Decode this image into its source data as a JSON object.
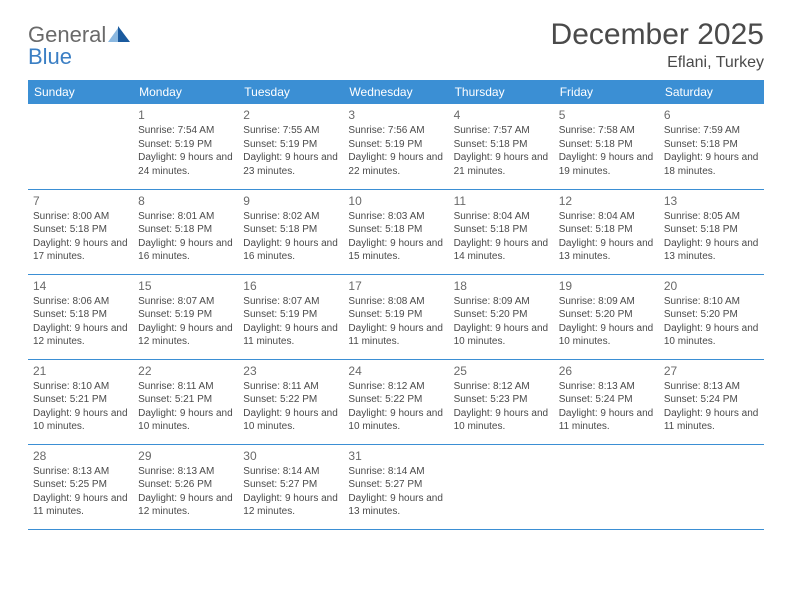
{
  "brand": {
    "part1": "General",
    "part2": "Blue"
  },
  "title": "December 2025",
  "location": "Eflani, Turkey",
  "colors": {
    "header_bg": "#3b8fd4",
    "header_text": "#ffffff",
    "border": "#3b8fd4",
    "body_text": "#4a4a4a",
    "brand_grey": "#6a6a6a",
    "brand_blue": "#3b7fc4",
    "logo_light": "#8bb8e0",
    "logo_dark": "#1a5a9e"
  },
  "weekdays": [
    "Sunday",
    "Monday",
    "Tuesday",
    "Wednesday",
    "Thursday",
    "Friday",
    "Saturday"
  ],
  "start_offset": 1,
  "days": [
    {
      "n": 1,
      "sr": "7:54 AM",
      "ss": "5:19 PM",
      "dl": "9 hours and 24 minutes."
    },
    {
      "n": 2,
      "sr": "7:55 AM",
      "ss": "5:19 PM",
      "dl": "9 hours and 23 minutes."
    },
    {
      "n": 3,
      "sr": "7:56 AM",
      "ss": "5:19 PM",
      "dl": "9 hours and 22 minutes."
    },
    {
      "n": 4,
      "sr": "7:57 AM",
      "ss": "5:18 PM",
      "dl": "9 hours and 21 minutes."
    },
    {
      "n": 5,
      "sr": "7:58 AM",
      "ss": "5:18 PM",
      "dl": "9 hours and 19 minutes."
    },
    {
      "n": 6,
      "sr": "7:59 AM",
      "ss": "5:18 PM",
      "dl": "9 hours and 18 minutes."
    },
    {
      "n": 7,
      "sr": "8:00 AM",
      "ss": "5:18 PM",
      "dl": "9 hours and 17 minutes."
    },
    {
      "n": 8,
      "sr": "8:01 AM",
      "ss": "5:18 PM",
      "dl": "9 hours and 16 minutes."
    },
    {
      "n": 9,
      "sr": "8:02 AM",
      "ss": "5:18 PM",
      "dl": "9 hours and 16 minutes."
    },
    {
      "n": 10,
      "sr": "8:03 AM",
      "ss": "5:18 PM",
      "dl": "9 hours and 15 minutes."
    },
    {
      "n": 11,
      "sr": "8:04 AM",
      "ss": "5:18 PM",
      "dl": "9 hours and 14 minutes."
    },
    {
      "n": 12,
      "sr": "8:04 AM",
      "ss": "5:18 PM",
      "dl": "9 hours and 13 minutes."
    },
    {
      "n": 13,
      "sr": "8:05 AM",
      "ss": "5:18 PM",
      "dl": "9 hours and 13 minutes."
    },
    {
      "n": 14,
      "sr": "8:06 AM",
      "ss": "5:18 PM",
      "dl": "9 hours and 12 minutes."
    },
    {
      "n": 15,
      "sr": "8:07 AM",
      "ss": "5:19 PM",
      "dl": "9 hours and 12 minutes."
    },
    {
      "n": 16,
      "sr": "8:07 AM",
      "ss": "5:19 PM",
      "dl": "9 hours and 11 minutes."
    },
    {
      "n": 17,
      "sr": "8:08 AM",
      "ss": "5:19 PM",
      "dl": "9 hours and 11 minutes."
    },
    {
      "n": 18,
      "sr": "8:09 AM",
      "ss": "5:20 PM",
      "dl": "9 hours and 10 minutes."
    },
    {
      "n": 19,
      "sr": "8:09 AM",
      "ss": "5:20 PM",
      "dl": "9 hours and 10 minutes."
    },
    {
      "n": 20,
      "sr": "8:10 AM",
      "ss": "5:20 PM",
      "dl": "9 hours and 10 minutes."
    },
    {
      "n": 21,
      "sr": "8:10 AM",
      "ss": "5:21 PM",
      "dl": "9 hours and 10 minutes."
    },
    {
      "n": 22,
      "sr": "8:11 AM",
      "ss": "5:21 PM",
      "dl": "9 hours and 10 minutes."
    },
    {
      "n": 23,
      "sr": "8:11 AM",
      "ss": "5:22 PM",
      "dl": "9 hours and 10 minutes."
    },
    {
      "n": 24,
      "sr": "8:12 AM",
      "ss": "5:22 PM",
      "dl": "9 hours and 10 minutes."
    },
    {
      "n": 25,
      "sr": "8:12 AM",
      "ss": "5:23 PM",
      "dl": "9 hours and 10 minutes."
    },
    {
      "n": 26,
      "sr": "8:13 AM",
      "ss": "5:24 PM",
      "dl": "9 hours and 11 minutes."
    },
    {
      "n": 27,
      "sr": "8:13 AM",
      "ss": "5:24 PM",
      "dl": "9 hours and 11 minutes."
    },
    {
      "n": 28,
      "sr": "8:13 AM",
      "ss": "5:25 PM",
      "dl": "9 hours and 11 minutes."
    },
    {
      "n": 29,
      "sr": "8:13 AM",
      "ss": "5:26 PM",
      "dl": "9 hours and 12 minutes."
    },
    {
      "n": 30,
      "sr": "8:14 AM",
      "ss": "5:27 PM",
      "dl": "9 hours and 12 minutes."
    },
    {
      "n": 31,
      "sr": "8:14 AM",
      "ss": "5:27 PM",
      "dl": "9 hours and 13 minutes."
    }
  ],
  "labels": {
    "sunrise": "Sunrise:",
    "sunset": "Sunset:",
    "daylight": "Daylight:"
  }
}
